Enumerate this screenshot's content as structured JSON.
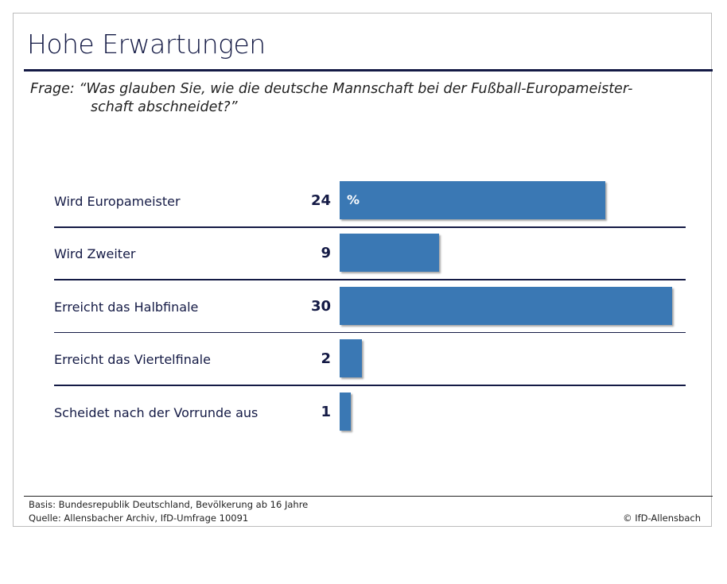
{
  "chart_data": {
    "type": "bar",
    "orientation": "horizontal",
    "title": "Hohe Erwartungen",
    "question_line1": "Frage: “Was glauben Sie, wie die deutsche Mannschaft bei der Fußball-Europameister-",
    "question_line2": "schaft abschneidet?”",
    "categories": [
      "Wird Europameister",
      "Wird Zweiter",
      "Erreicht das Halbfinale",
      "Erreicht das Viertelfinale",
      "Scheidet nach der Vorrunde aus"
    ],
    "values": [
      24,
      9,
      30,
      2,
      1
    ],
    "unit_label": "%",
    "xlim": [
      0,
      30
    ],
    "bar_color": "#3a78b4",
    "grid": false
  },
  "footer": {
    "basis": "Basis: Bundesrepublik Deutschland, Bevölkerung ab 16 Jahre",
    "source": "Quelle: Allensbacher Archiv, IfD-Umfrage 10091",
    "copyright": "© IfD-Allensbach"
  }
}
